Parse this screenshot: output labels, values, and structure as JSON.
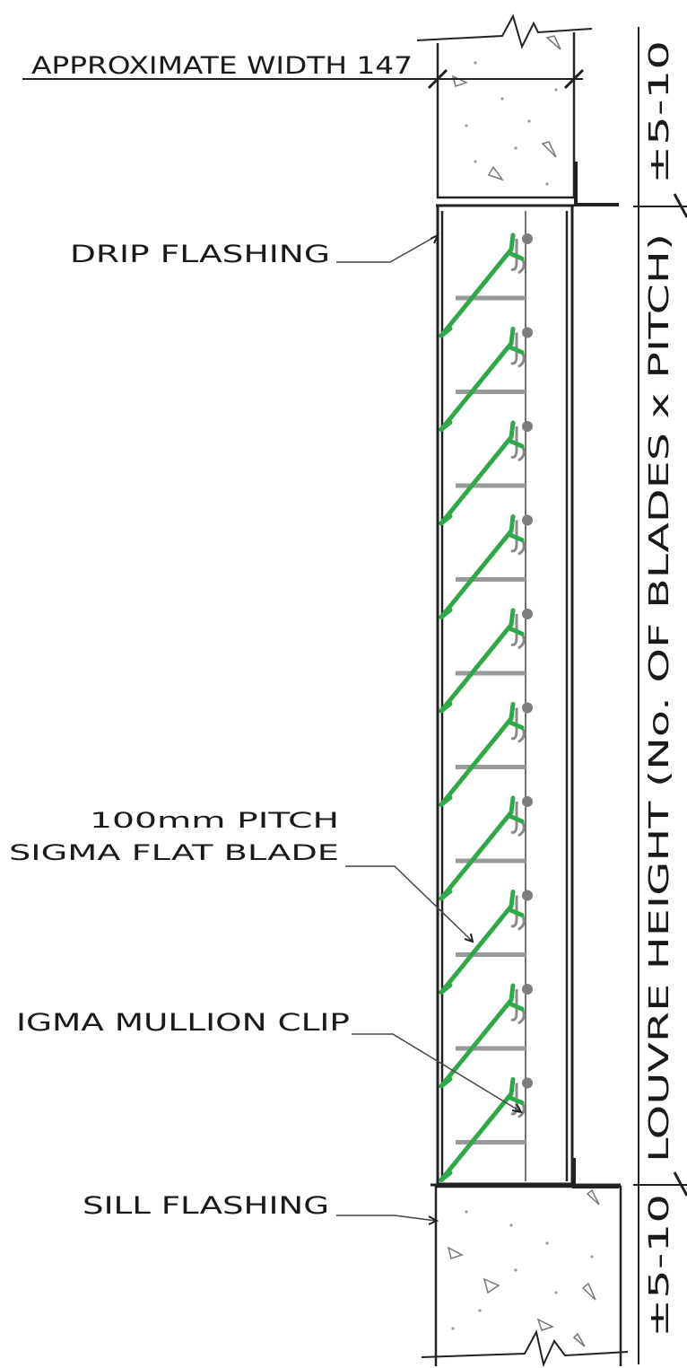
{
  "labels": {
    "approximate_width": "APPROXIMATE WIDTH 147",
    "drip_flashing": "DRIP FLASHING",
    "pitch": "100mm PITCH",
    "blade": "SIGMA FLAT BLADE",
    "mullion_clip": "IGMA MULLION CLIP",
    "sill_flashing": "SILL FLASHING",
    "louvre_height": "LOUVRE HEIGHT (No. OF BLADES x PITCH)",
    "tolerance_top": "±5-10",
    "tolerance_bottom": "±5-10"
  },
  "colors": {
    "blade": "#2fa84a",
    "support": "#9a9a9a",
    "line": "#222222"
  },
  "blade_count": 10
}
